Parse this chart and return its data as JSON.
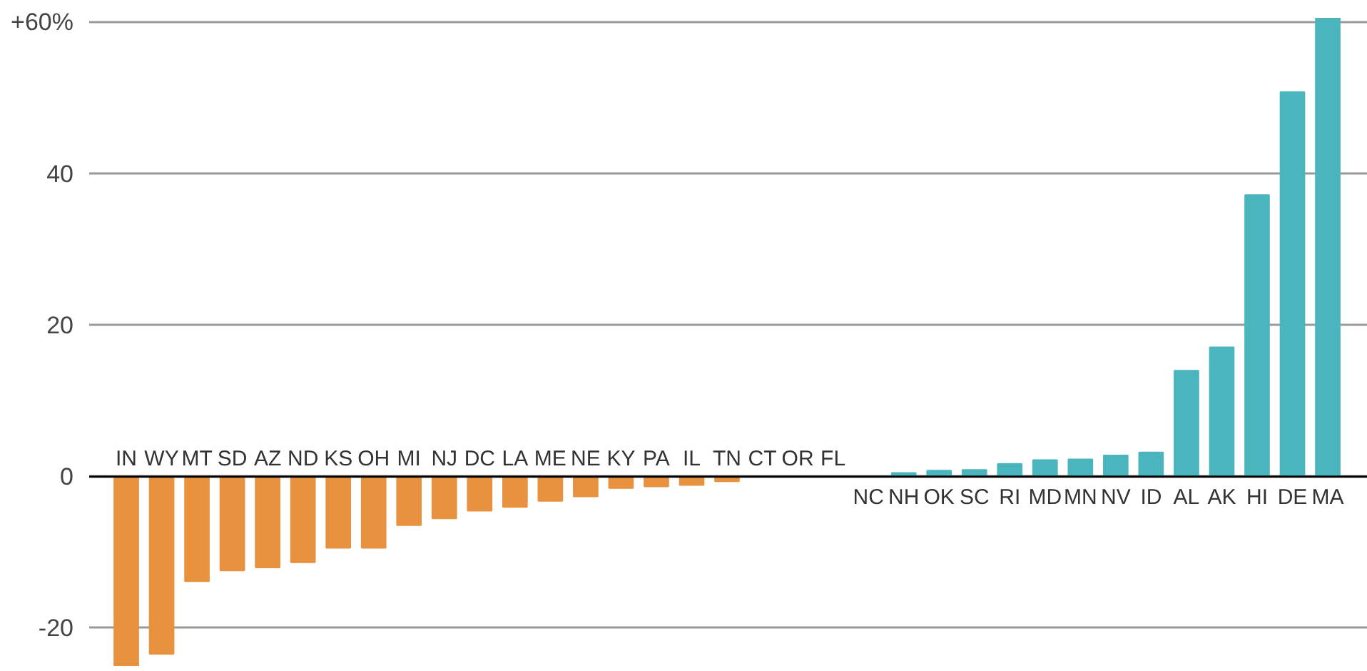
{
  "chart_data": {
    "type": "bar",
    "categories": [
      "IN",
      "WY",
      "MT",
      "SD",
      "AZ",
      "ND",
      "KS",
      "OH",
      "MI",
      "NJ",
      "DC",
      "LA",
      "ME",
      "NE",
      "KY",
      "PA",
      "IL",
      "TN",
      "CT",
      "OR",
      "FL",
      "NC",
      "NH",
      "OK",
      "SC",
      "RI",
      "MD",
      "MN",
      "NV",
      "ID",
      "AL",
      "AK",
      "HI",
      "DE",
      "MA"
    ],
    "values": [
      -25,
      -23.4,
      -13.8,
      -12.4,
      -12,
      -11.3,
      -9.4,
      -9.4,
      -6.4,
      -5.5,
      -4.5,
      -4,
      -3.2,
      -2.6,
      -1.5,
      -1.3,
      -1.1,
      -0.6,
      0,
      0,
      0,
      0,
      0.5,
      0.8,
      0.9,
      1.7,
      2.2,
      2.3,
      2.8,
      3.2,
      14,
      17.1,
      37.2,
      50.8,
      60.6
    ],
    "colors": [
      "#e8913e",
      "#e8913e",
      "#e8913e",
      "#e8913e",
      "#e8913e",
      "#e8913e",
      "#e8913e",
      "#e8913e",
      "#e8913e",
      "#e8913e",
      "#e8913e",
      "#e8913e",
      "#e8913e",
      "#e8913e",
      "#e8913e",
      "#e8913e",
      "#e8913e",
      "#e8913e",
      "#e8913e",
      "#e8913e",
      "#e8913e",
      "#4ab5bd",
      "#4ab5bd",
      "#4ab5bd",
      "#4ab5bd",
      "#4ab5bd",
      "#4ab5bd",
      "#4ab5bd",
      "#4ab5bd",
      "#4ab5bd",
      "#4ab5bd",
      "#4ab5bd",
      "#4ab5bd",
      "#4ab5bd",
      "#4ab5bd"
    ],
    "ylim": [
      -25,
      60.6
    ],
    "yticks": [
      -20,
      0,
      20,
      40,
      {
        "value": 60,
        "label": "+60%"
      }
    ],
    "grid": "y"
  }
}
